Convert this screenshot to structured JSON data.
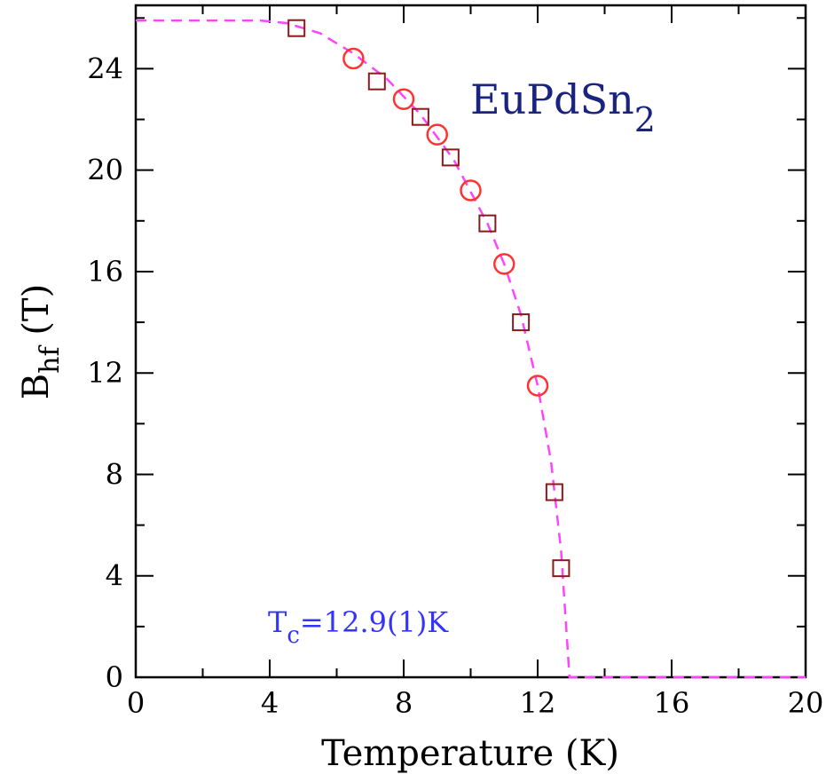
{
  "chart_data": {
    "type": "scatter",
    "xlabel": "Temperature (K)",
    "ylabel": "B",
    "ylabel_sub": "hf",
    "ylabel_suffix": "(T)",
    "xlim": [
      0,
      20
    ],
    "ylim": [
      0,
      26.5
    ],
    "xticks": [
      0,
      4,
      8,
      12,
      16,
      20
    ],
    "yticks": [
      0,
      4,
      8,
      12,
      16,
      20,
      24
    ],
    "grid": false,
    "annotations": {
      "compound_main": "EuPdSn",
      "compound_sub": "2",
      "tc_T": "T",
      "tc_sub": "c",
      "tc_rest": "=12.9(1)K"
    },
    "series": [
      {
        "marker": "square",
        "color": "#8b1a1a",
        "points": [
          [
            4.8,
            25.6
          ],
          [
            7.2,
            23.5
          ],
          [
            8.5,
            22.1
          ],
          [
            9.4,
            20.5
          ],
          [
            10.5,
            17.9
          ],
          [
            11.5,
            14.0
          ],
          [
            12.5,
            7.3
          ],
          [
            12.7,
            4.3
          ]
        ]
      },
      {
        "marker": "circle",
        "color": "#ff3333",
        "points": [
          [
            6.5,
            24.4
          ],
          [
            8.0,
            22.8
          ],
          [
            9.0,
            21.4
          ],
          [
            10.0,
            19.2
          ],
          [
            11.0,
            16.3
          ],
          [
            12.0,
            11.5
          ]
        ]
      }
    ],
    "fit": {
      "color": "#ff44ff",
      "dash": "dashed",
      "Tc": 12.9,
      "B0": 25.9,
      "points": [
        [
          0,
          25.9
        ],
        [
          3.7,
          25.9
        ],
        [
          4.5,
          25.8
        ],
        [
          5.5,
          25.4
        ],
        [
          6.5,
          24.6
        ],
        [
          7.5,
          23.6
        ],
        [
          8.5,
          22.2
        ],
        [
          9.5,
          20.4
        ],
        [
          10.5,
          17.9
        ],
        [
          11.0,
          16.3
        ],
        [
          11.5,
          14.3
        ],
        [
          12.0,
          11.5
        ],
        [
          12.4,
          8.5
        ],
        [
          12.7,
          5.0
        ],
        [
          12.85,
          2.0
        ],
        [
          12.95,
          0
        ],
        [
          20,
          0
        ]
      ]
    }
  }
}
